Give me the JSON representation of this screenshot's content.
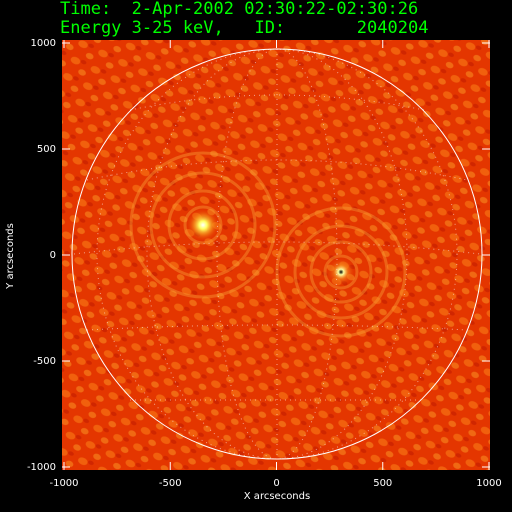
{
  "chart_data": {
    "type": "image",
    "title": "Time:  2-Apr-2002 02:30:22-02:30:26",
    "subtitle": "Energy 3-25 keV,   ID:       2040204",
    "x_label": "X arcseconds",
    "y_label": "Y arcseconds",
    "xlim": [
      -1000,
      1000
    ],
    "ylim": [
      -1000,
      1000
    ],
    "xticks": [
      -1000,
      -500,
      0,
      500,
      1000
    ],
    "yticks": [
      -1000,
      -500,
      0,
      500,
      1000
    ]
  }
}
